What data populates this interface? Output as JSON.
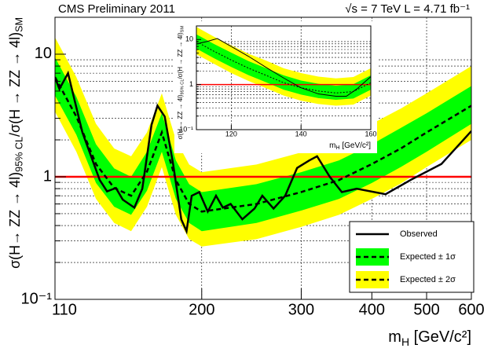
{
  "chart_data": [
    {
      "type": "limit",
      "title": "CMS Preliminary 2011",
      "subtitle": "√s = 7 TeV  L = 4.71 fb⁻¹",
      "xlabel": [
        "m",
        "H",
        " [GeV/c²]"
      ],
      "ylabel": [
        "σ(H→ ZZ → 4l)",
        "95% CL",
        "/σ(H → ZZ → 4l)",
        "SM"
      ],
      "xlog": true,
      "ylog": true,
      "xlim": [
        110,
        600
      ],
      "ylim": [
        0.1,
        20
      ],
      "xticks": [
        110,
        200,
        300,
        400,
        500,
        600
      ],
      "yticks": [
        {
          "value": 0.1,
          "label": "10⁻¹"
        },
        1,
        10
      ],
      "yticks_minor": [
        0.2,
        0.3,
        0.4,
        0.5,
        0.6,
        0.7,
        0.8,
        0.9,
        2,
        3,
        4,
        5,
        6,
        7,
        8,
        9,
        20
      ],
      "grid": true,
      "reference_line": 1,
      "reference_color": "#ff0000",
      "legend": "lower right",
      "observed": {
        "name": "Observed",
        "color": "#000000",
        "x": [
          110,
          112,
          116,
          123,
          132,
          136,
          141,
          145,
          152,
          157,
          163,
          167,
          172,
          178,
          184,
          188,
          192,
          198,
          205,
          212,
          218,
          225,
          236,
          248,
          256,
          268,
          281,
          295,
          310,
          320,
          337,
          354,
          376,
          423,
          468,
          531,
          600
        ],
        "values": [
          6.45,
          5.2,
          7.0,
          2.3,
          0.94,
          0.76,
          0.81,
          0.65,
          0.56,
          0.8,
          2.65,
          3.8,
          3.1,
          1.27,
          0.45,
          0.36,
          0.7,
          0.75,
          0.52,
          0.7,
          0.56,
          0.6,
          0.45,
          0.55,
          0.7,
          0.55,
          0.7,
          1.18,
          1.36,
          1.47,
          1.0,
          0.75,
          0.8,
          0.72,
          0.94,
          1.27,
          2.36
        ]
      },
      "expected": {
        "color": "#000000",
        "x": [
          110,
          120,
          130,
          140,
          150,
          160,
          170,
          180,
          190,
          200,
          250,
          300,
          350,
          400,
          450,
          500,
          600
        ],
        "median": [
          6.5,
          3.1,
          1.27,
          0.81,
          0.7,
          1.1,
          2.3,
          0.94,
          0.6,
          0.52,
          0.6,
          0.75,
          0.94,
          1.27,
          1.7,
          2.3,
          3.8
        ],
        "bands": [
          {
            "name": "Expected ± 1σ",
            "color": "#00ff00",
            "lower": [
              4.6,
              2.2,
              0.89,
              0.57,
              0.49,
              0.77,
              1.6,
              0.66,
              0.42,
              0.36,
              0.42,
              0.53,
              0.66,
              0.89,
              1.2,
              1.6,
              2.7
            ],
            "upper": [
              9.4,
              4.5,
              1.84,
              1.17,
              1.0,
              1.6,
              3.3,
              1.36,
              0.87,
              0.75,
              0.87,
              1.09,
              1.36,
              1.84,
              2.5,
              3.3,
              5.5
            ]
          },
          {
            "name": "Expected ± 2σ",
            "color": "#ffff00",
            "lower": [
              3.4,
              1.6,
              0.66,
              0.42,
              0.36,
              0.57,
              1.2,
              0.49,
              0.31,
              0.27,
              0.31,
              0.39,
              0.49,
              0.66,
              0.88,
              1.2,
              2.0
            ],
            "upper": [
              13.7,
              6.5,
              2.7,
              1.7,
              1.47,
              2.3,
              4.8,
              2.0,
              1.26,
              1.09,
              1.26,
              1.58,
              2.0,
              2.7,
              3.6,
              4.8,
              8.0
            ]
          }
        ]
      }
    },
    {
      "type": "limit",
      "xlabel": [
        "m",
        "H",
        " [GeV/c²]"
      ],
      "ylabel": [
        "σ(H → ZZ → 4l)",
        "95% CL",
        "/σ(H → ZZ → 4l)",
        "SM"
      ],
      "xlog": false,
      "ylog": true,
      "xlim": [
        110,
        160
      ],
      "ylim": [
        0.1,
        20
      ],
      "xticks": [
        120,
        140,
        160
      ],
      "yticks": [
        {
          "value": 0.1,
          "label": "10⁻¹"
        },
        1,
        10
      ],
      "yticks_minor": [
        0.2,
        0.3,
        0.4,
        0.5,
        0.6,
        0.7,
        0.8,
        0.9,
        2,
        3,
        4,
        5,
        6,
        7,
        8,
        9
      ],
      "grid": true,
      "reference_line": 1,
      "reference_color": "#ff0000",
      "observed": {
        "color": "#000000",
        "x": [
          110,
          113,
          116,
          120,
          125,
          130,
          135,
          140,
          145,
          150,
          153,
          156,
          160
        ],
        "values": [
          8,
          9,
          10.5,
          7,
          4.2,
          2.4,
          1.4,
          0.85,
          0.62,
          0.55,
          0.55,
          0.8,
          1.5
        ]
      },
      "expected": {
        "color": "#000000",
        "x": [
          110,
          115,
          120,
          125,
          130,
          135,
          140,
          145,
          150,
          155,
          160
        ],
        "median": [
          9,
          5.5,
          3.5,
          2.3,
          1.6,
          1.1,
          0.85,
          0.72,
          0.65,
          0.7,
          1.1
        ],
        "bands": [
          {
            "color": "#00ff00",
            "lower": [
              6.3,
              3.85,
              2.45,
              1.61,
              1.12,
              0.77,
              0.6,
              0.5,
              0.46,
              0.49,
              0.77
            ],
            "upper": [
              13,
              8,
              5.1,
              3.3,
              2.3,
              1.6,
              1.23,
              1.04,
              0.94,
              1.02,
              1.6
            ]
          },
          {
            "color": "#ffff00",
            "lower": [
              4.7,
              2.9,
              1.8,
              1.2,
              0.83,
              0.57,
              0.44,
              0.37,
              0.34,
              0.36,
              0.57
            ],
            "upper": [
              19,
              11.6,
              7.4,
              4.8,
              3.4,
              2.3,
              1.8,
              1.5,
              1.37,
              1.47,
              2.3
            ]
          }
        ]
      }
    }
  ]
}
